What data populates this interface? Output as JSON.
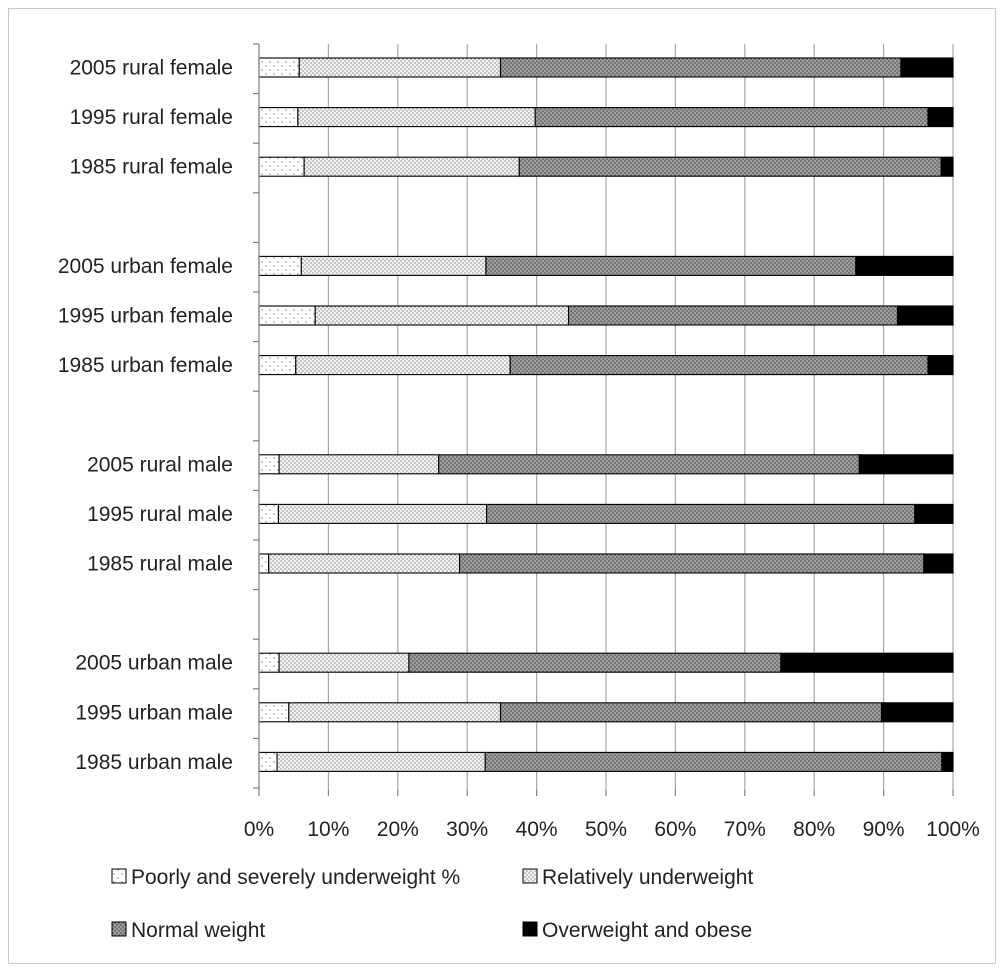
{
  "chart_data": {
    "type": "bar",
    "orientation": "horizontal",
    "stacked": "percent",
    "categories": [
      "2005 rural female",
      "1995 rural female",
      "1985 rural female",
      "",
      "2005 urban female",
      "1995 urban female",
      "1985 urban female",
      "",
      "2005 rural male",
      "1995 rural male",
      "1985 rural male",
      "",
      "2005 urban male",
      "1995 urban male",
      "1985 urban male"
    ],
    "series": [
      {
        "name": "Poorly and severely underweight %",
        "pattern": "dots-sparse",
        "values": [
          5.8,
          5.6,
          6.5,
          null,
          6.1,
          8.1,
          5.3,
          null,
          2.9,
          2.8,
          1.4,
          null,
          2.9,
          4.3,
          2.6
        ]
      },
      {
        "name": "Relatively underweight",
        "pattern": "dots-dense",
        "values": [
          29.0,
          34.2,
          31.0,
          null,
          26.6,
          36.5,
          30.9,
          null,
          23.0,
          30.0,
          27.5,
          null,
          18.7,
          30.5,
          30.0
        ]
      },
      {
        "name": "Normal weight",
        "pattern": "dots-dark",
        "values": [
          57.7,
          56.6,
          60.8,
          null,
          53.3,
          47.4,
          60.2,
          null,
          60.6,
          61.7,
          66.9,
          null,
          53.6,
          54.9,
          65.8
        ]
      },
      {
        "name": "Overweight and obese",
        "pattern": "solid-black",
        "values": [
          7.5,
          3.6,
          1.7,
          null,
          14.0,
          8.0,
          3.6,
          null,
          13.5,
          5.5,
          4.2,
          null,
          24.8,
          10.3,
          1.6
        ]
      }
    ],
    "xticks": [
      "0%",
      "10%",
      "20%",
      "30%",
      "40%",
      "50%",
      "60%",
      "70%",
      "80%",
      "90%",
      "100%"
    ],
    "xlim": [
      0,
      100
    ],
    "grid": "vertical",
    "legend_position": "bottom",
    "title": "",
    "xlabel": "",
    "ylabel": ""
  }
}
